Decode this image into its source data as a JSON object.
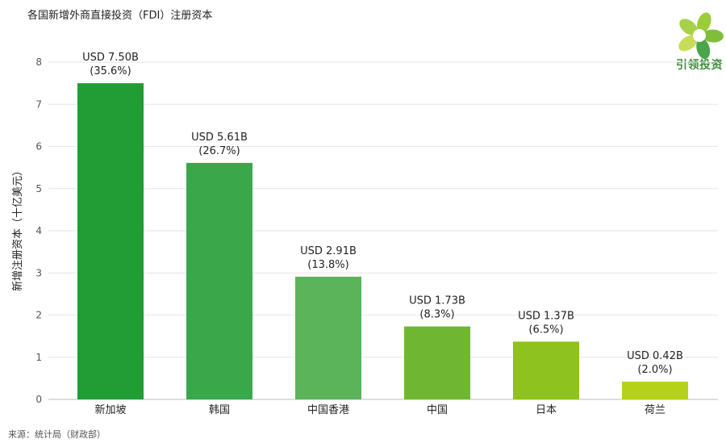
{
  "header": {
    "title": "各国新增外商直接投资（FDI）注册资本"
  },
  "brand": {
    "name": "引领投资",
    "colors": [
      "#9ccb3b",
      "#4aa54a",
      "#c8dc5a"
    ]
  },
  "footer": {
    "source": "来源：统计局（财政部）"
  },
  "chart_data": {
    "type": "bar",
    "title": "各国新增外商直接投资（FDI）注册资本",
    "ylabel": "新增注册资本（十亿美元）",
    "xlabel": "",
    "ylim": [
      0,
      8
    ],
    "yticks": [
      "0",
      "1",
      "2",
      "3",
      "4",
      "5",
      "6",
      "7",
      "8"
    ],
    "grid": true,
    "categories": [
      "新加坡",
      "韩国",
      "中国香港",
      "中国",
      "日本",
      "荷兰"
    ],
    "values": [
      7.5,
      5.61,
      2.91,
      1.73,
      1.37,
      0.42
    ],
    "value_labels": [
      "USD 7.50B",
      "USD 5.61B",
      "USD 2.91B",
      "USD 1.73B",
      "USD 1.37B",
      "USD 0.42B"
    ],
    "share_labels": [
      "(35.6%)",
      "(26.7%)",
      "(13.8%)",
      "(8.3%)",
      "(6.5%)",
      "(2.0%)"
    ],
    "colors": [
      "#229c35",
      "#3aa84a",
      "#5bb35a",
      "#6fb733",
      "#8ec21f",
      "#b5d11a"
    ]
  }
}
